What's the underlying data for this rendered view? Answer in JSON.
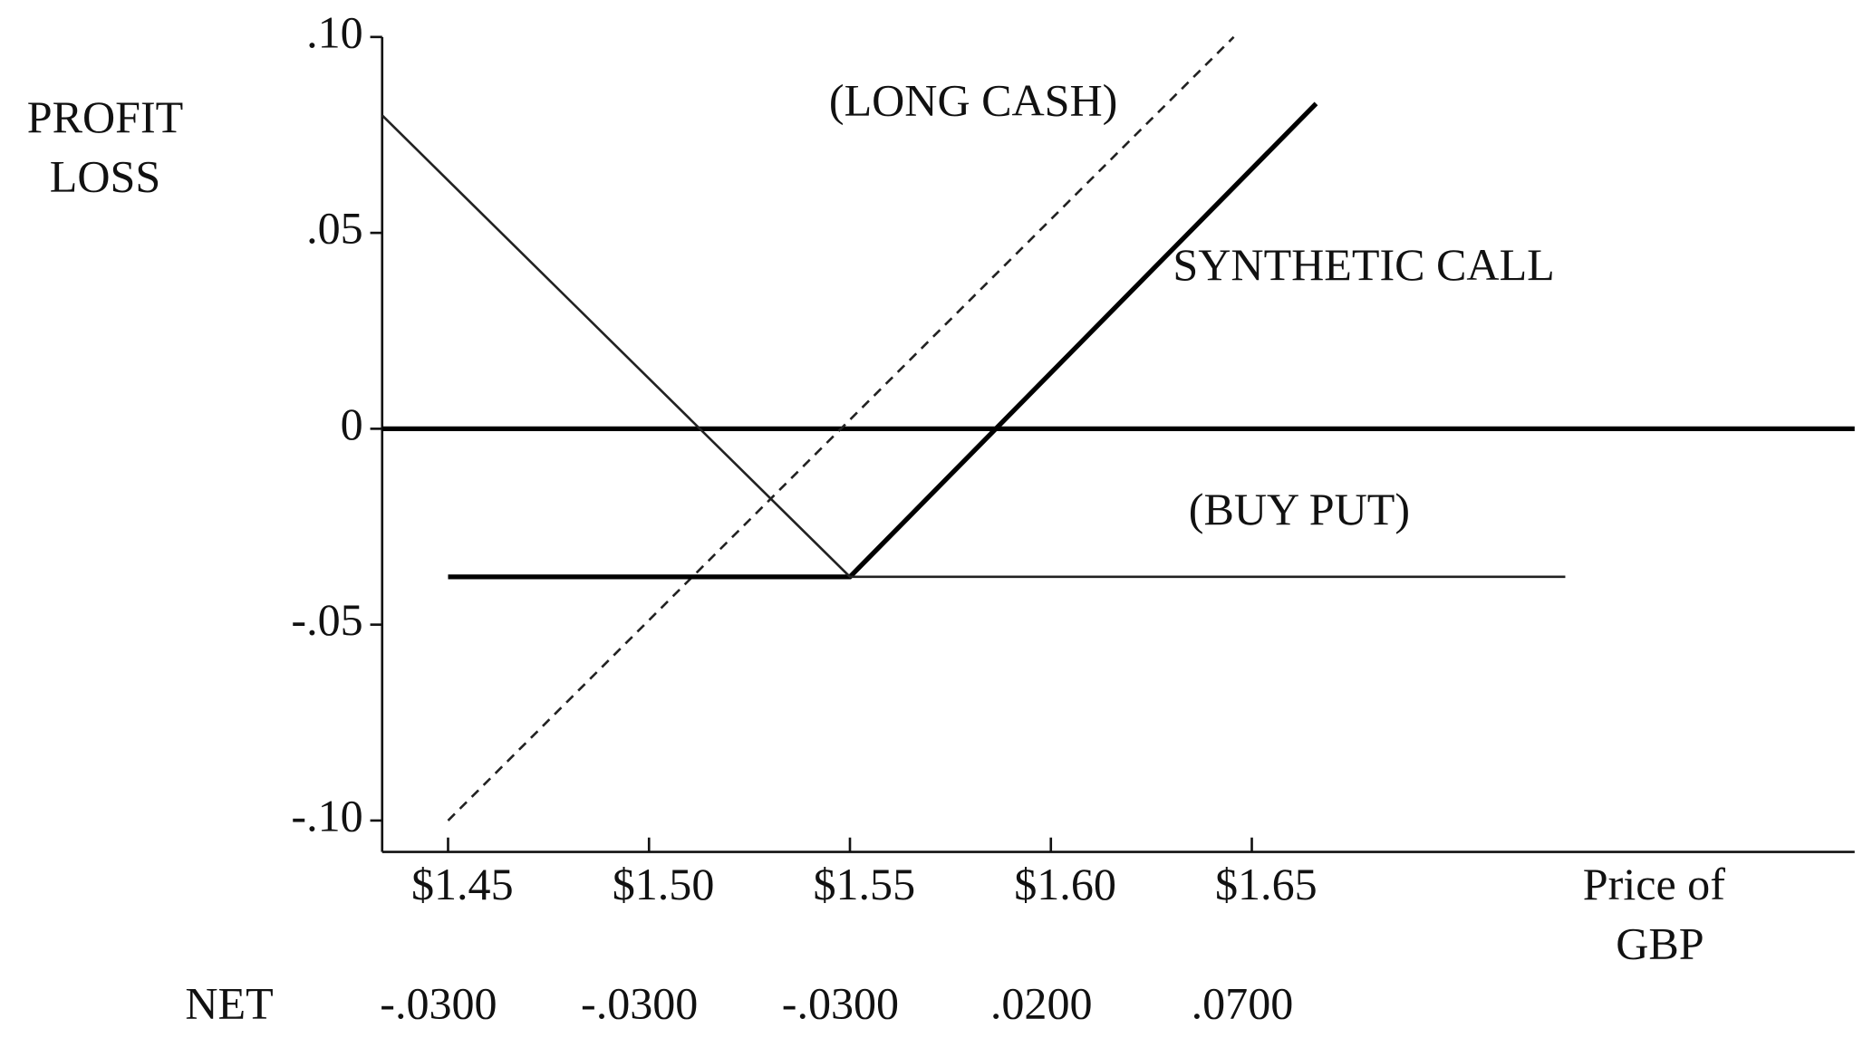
{
  "chart_data": {
    "type": "line",
    "y_label": [
      "PROFIT",
      "LOSS"
    ],
    "x_label": [
      "Price of",
      "GBP"
    ],
    "xlim": [
      1.4336,
      1.8
    ],
    "ylim": [
      -0.108,
      0.1
    ],
    "xticks": [
      {
        "value": 1.45,
        "label": "$1.45"
      },
      {
        "value": 1.5,
        "label": "$1.50"
      },
      {
        "value": 1.55,
        "label": "$1.55"
      },
      {
        "value": 1.6,
        "label": "$1.60"
      },
      {
        "value": 1.65,
        "label": "$1.65"
      }
    ],
    "yticks": [
      {
        "value": 0.1,
        "label": ".10"
      },
      {
        "value": 0.05,
        "label": ".05"
      },
      0,
      {
        "value": -0.05,
        "label": "-.05"
      },
      {
        "value": -0.1,
        "label": "-.10"
      }
    ],
    "zero_line": true,
    "series": [
      {
        "name": "(LONG CASH)",
        "color": "#222222",
        "dashed": true,
        "thick": false,
        "x": [
          1.45,
          1.6455
        ],
        "values": [
          -0.1,
          0.1
        ]
      },
      {
        "name": "SYNTHETIC CALL",
        "color": "#000000",
        "dashed": false,
        "thick": true,
        "x": [
          1.45,
          1.55,
          1.666
        ],
        "values": [
          -0.0378,
          -0.0378,
          0.083
        ]
      },
      {
        "name": "(BUY PUT)",
        "color": "#222222",
        "dashed": false,
        "thick": false,
        "x": [
          1.4336,
          1.55,
          1.728
        ],
        "values": [
          0.08,
          -0.0378,
          -0.0378
        ]
      }
    ],
    "net": {
      "label": "NET",
      "values": [
        -0.03,
        -0.03,
        -0.03,
        0.02,
        0.07
      ],
      "value_labels": [
        "-.0300",
        "-.0300",
        "-.0300",
        ".0200",
        ".0700"
      ]
    }
  }
}
